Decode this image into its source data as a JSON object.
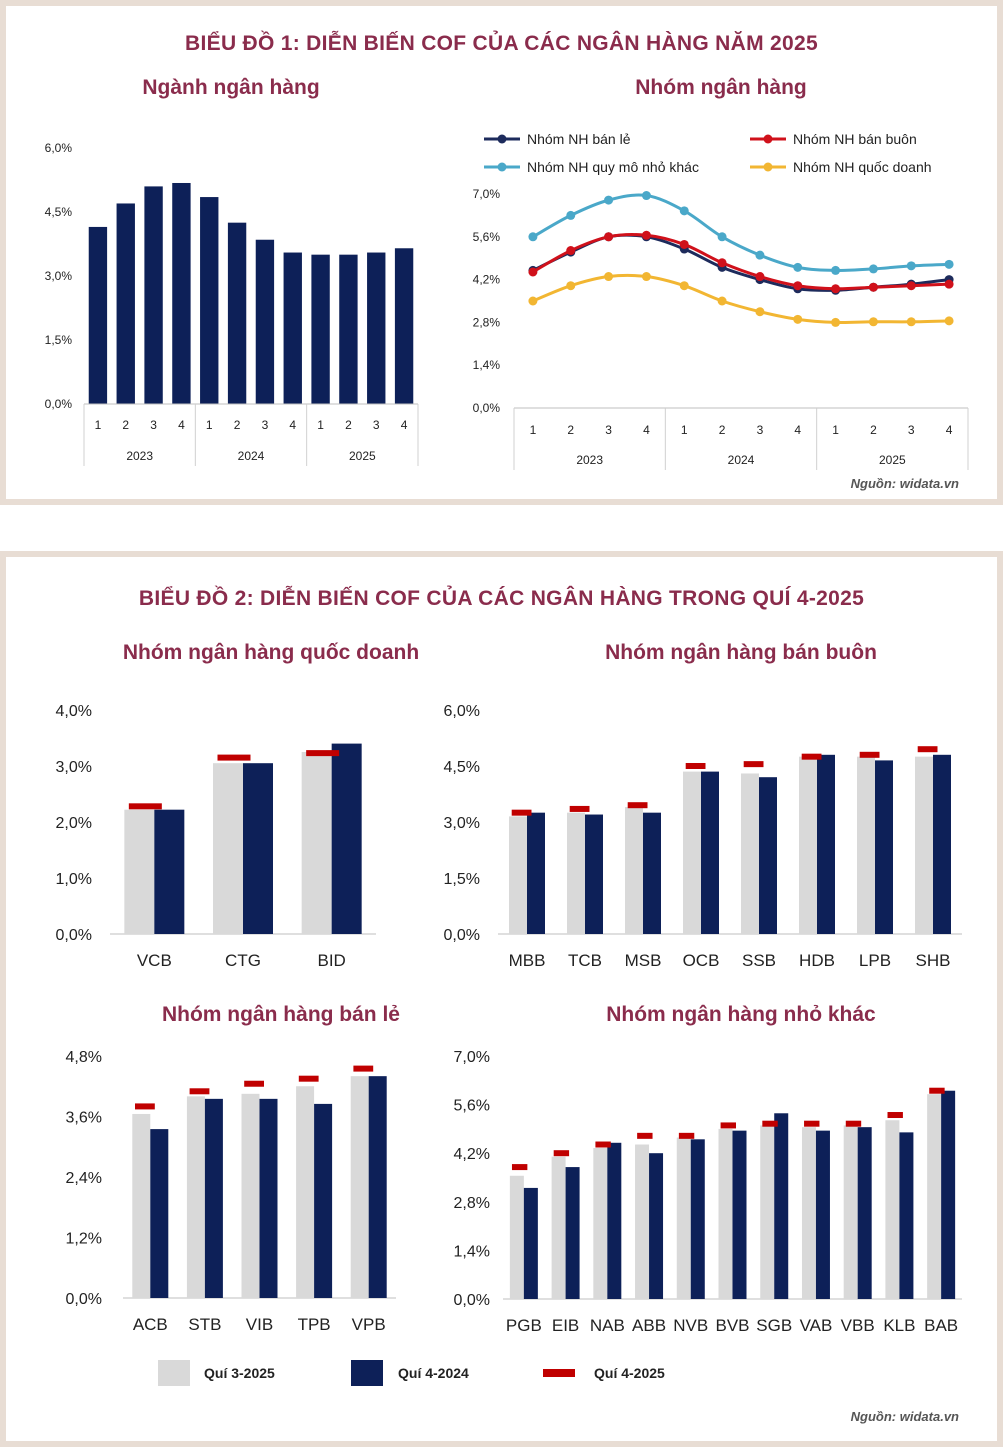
{
  "colors": {
    "title": "#8a2c4c",
    "navy": "#0d2058",
    "grey": "#d9d9d9",
    "red": "#c00000",
    "retail": "#1d2b5c",
    "wholesale": "#d0111b",
    "small": "#4aa8c9",
    "state": "#f2b632"
  },
  "figure1": {
    "title": "BIỂU ĐỒ 1: DIỄN BIẾN COF CỦA CÁC NGÂN HÀNG NĂM 2025",
    "source": "Nguồn: widata.vn"
  },
  "figure2": {
    "title": "BIỂU ĐỒ 2: DIỄN BIẾN COF CỦA CÁC NGÂN HÀNG TRONG QUÍ 4-2025",
    "source": "Nguồn: widata.vn",
    "legend": [
      {
        "label": "Quí 3-2025",
        "color": "#d9d9d9"
      },
      {
        "label": "Quí 4-2024",
        "color": "#0d2058"
      },
      {
        "label": "Quí 4-2025",
        "color": "#c00000"
      }
    ]
  },
  "chart_data": [
    {
      "id": "industry",
      "type": "bar",
      "title": "Ngành ngân hàng",
      "quarters": [
        "1",
        "2",
        "3",
        "4",
        "1",
        "2",
        "3",
        "4",
        "1",
        "2",
        "3",
        "4"
      ],
      "years": [
        "2023",
        "2024",
        "2025"
      ],
      "values": [
        4.15,
        4.7,
        5.1,
        5.18,
        4.85,
        4.25,
        3.85,
        3.55,
        3.5,
        3.5,
        3.55,
        3.65
      ],
      "yticks": [
        "6,0%",
        "4,5%",
        "3,0%",
        "1,5%",
        "0,0%"
      ],
      "ylim": [
        0,
        6
      ],
      "xlabel": "",
      "ylabel": ""
    },
    {
      "id": "groups",
      "type": "line",
      "title": "Nhóm ngân hàng",
      "quarters": [
        "1",
        "2",
        "3",
        "4",
        "1",
        "2",
        "3",
        "4",
        "1",
        "2",
        "3",
        "4"
      ],
      "years": [
        "2023",
        "2024",
        "2025"
      ],
      "yticks": [
        "7,0%",
        "5,6%",
        "4,2%",
        "2,8%",
        "1,4%",
        "0,0%"
      ],
      "ylim": [
        0,
        7
      ],
      "series": [
        {
          "name": "Nhóm NH bán lẻ",
          "color": "#1d2b5c",
          "values": [
            4.5,
            5.1,
            5.6,
            5.6,
            5.2,
            4.6,
            4.2,
            3.9,
            3.85,
            3.95,
            4.05,
            4.2
          ]
        },
        {
          "name": "Nhóm NH bán buôn",
          "color": "#d0111b",
          "values": [
            4.45,
            5.15,
            5.6,
            5.65,
            5.35,
            4.75,
            4.3,
            4.0,
            3.9,
            3.95,
            4.0,
            4.05
          ]
        },
        {
          "name": "Nhóm NH quy mô nhỏ khác",
          "color": "#4aa8c9",
          "values": [
            5.6,
            6.3,
            6.8,
            6.95,
            6.45,
            5.6,
            5.0,
            4.6,
            4.5,
            4.55,
            4.65,
            4.7
          ]
        },
        {
          "name": "Nhóm NH quốc doanh",
          "color": "#f2b632",
          "values": [
            3.5,
            4.0,
            4.3,
            4.3,
            4.0,
            3.5,
            3.15,
            2.9,
            2.8,
            2.82,
            2.82,
            2.85
          ]
        }
      ]
    },
    {
      "id": "state",
      "type": "bar",
      "title": "Nhóm ngân hàng quốc doanh",
      "categories": [
        "VCB",
        "CTG",
        "BID"
      ],
      "q3_2025": [
        2.22,
        3.05,
        3.25
      ],
      "q4_2024": [
        2.22,
        3.05,
        3.4
      ],
      "q4_2025": [
        2.28,
        3.15,
        3.23
      ],
      "yticks": [
        "4,0%",
        "3,0%",
        "2,0%",
        "1,0%",
        "0,0%"
      ],
      "ylim": [
        0,
        4
      ]
    },
    {
      "id": "wholesale",
      "type": "bar",
      "title": "Nhóm ngân hàng bán buôn",
      "categories": [
        "MBB",
        "TCB",
        "MSB",
        "OCB",
        "SSB",
        "HDB",
        "LPB",
        "SHB"
      ],
      "q3_2025": [
        3.15,
        3.25,
        3.4,
        4.35,
        4.3,
        4.75,
        4.75,
        4.75
      ],
      "q4_2024": [
        3.25,
        3.2,
        3.25,
        4.35,
        4.2,
        4.8,
        4.65,
        4.8
      ],
      "q4_2025": [
        3.25,
        3.35,
        3.45,
        4.5,
        4.55,
        4.75,
        4.8,
        4.95
      ],
      "yticks": [
        "6,0%",
        "4,5%",
        "3,0%",
        "1,5%",
        "0,0%"
      ],
      "ylim": [
        0,
        6
      ]
    },
    {
      "id": "retail",
      "type": "bar",
      "title": "Nhóm ngân hàng bán lẻ",
      "categories": [
        "ACB",
        "STB",
        "VIB",
        "TPB",
        "VPB"
      ],
      "q3_2025": [
        3.65,
        4.0,
        4.05,
        4.2,
        4.4
      ],
      "q4_2024": [
        3.35,
        3.95,
        3.95,
        3.85,
        4.4
      ],
      "q4_2025": [
        3.8,
        4.1,
        4.25,
        4.35,
        4.55
      ],
      "yticks": [
        "4,8%",
        "3,6%",
        "2,4%",
        "1,2%",
        "0,0%"
      ],
      "ylim": [
        0,
        4.8
      ]
    },
    {
      "id": "small",
      "type": "bar",
      "title": "Nhóm ngân hàng nhỏ khác",
      "categories": [
        "PGB",
        "EIB",
        "NAB",
        "ABB",
        "NVB",
        "BVB",
        "SGB",
        "VAB",
        "VBB",
        "KLB",
        "BAB"
      ],
      "q3_2025": [
        3.55,
        4.1,
        4.35,
        4.45,
        4.65,
        4.9,
        5.0,
        4.95,
        5.0,
        5.15,
        5.9
      ],
      "q4_2024": [
        3.2,
        3.8,
        4.5,
        4.2,
        4.6,
        4.85,
        5.35,
        4.85,
        4.95,
        4.8,
        6.0
      ],
      "q4_2025": [
        3.8,
        4.2,
        4.45,
        4.7,
        4.7,
        5.0,
        5.05,
        5.05,
        5.05,
        5.3,
        6.0
      ],
      "yticks": [
        "7,0%",
        "5,6%",
        "4,2%",
        "2,8%",
        "1,4%",
        "0,0%"
      ],
      "ylim": [
        0,
        7
      ]
    }
  ]
}
